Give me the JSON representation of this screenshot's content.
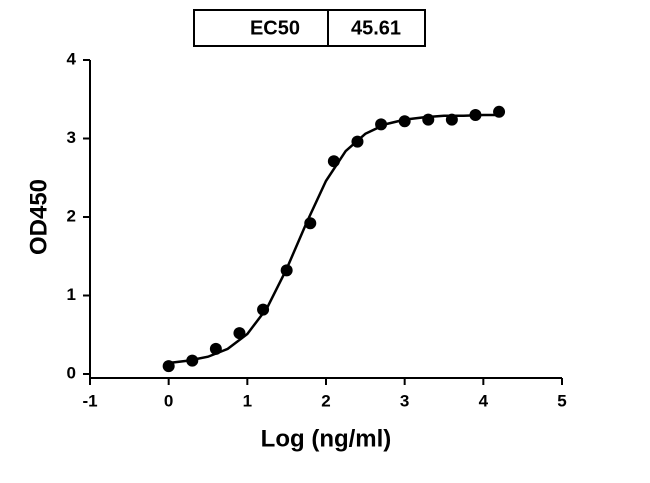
{
  "chart_data": {
    "type": "scatter",
    "table": [
      [
        "EC50",
        "45.61"
      ]
    ],
    "xlabel": "Log (ng/ml)",
    "ylabel": "OD450",
    "xlim": [
      -1,
      5
    ],
    "xticks": [
      -1,
      0,
      1,
      2,
      3,
      4,
      5
    ],
    "ylim": [
      0,
      4
    ],
    "yticks": [
      0,
      1,
      2,
      3,
      4
    ],
    "grid": false,
    "series": [
      {
        "type": "scatter",
        "color": "#000000",
        "x": [
          0,
          0.3,
          0.6,
          0.9,
          1.2,
          1.5,
          1.8,
          2.1,
          2.4,
          2.7,
          3.0,
          3.3,
          3.6,
          3.9,
          4.2
        ],
        "values": [
          0.1,
          0.17,
          0.32,
          0.52,
          0.82,
          1.32,
          1.92,
          2.71,
          2.96,
          3.18,
          3.22,
          3.24,
          3.24,
          3.3,
          3.34
        ]
      },
      {
        "type": "line",
        "color": "#000000",
        "x": [
          0,
          0.25,
          0.5,
          0.75,
          1.0,
          1.25,
          1.5,
          1.75,
          2.0,
          2.25,
          2.5,
          2.75,
          3.0,
          3.25,
          3.5,
          3.75,
          4.0,
          4.2
        ],
        "values": [
          0.14,
          0.17,
          0.22,
          0.32,
          0.51,
          0.84,
          1.34,
          1.92,
          2.46,
          2.84,
          3.06,
          3.18,
          3.24,
          3.27,
          3.29,
          3.29,
          3.3,
          3.3
        ]
      }
    ]
  }
}
